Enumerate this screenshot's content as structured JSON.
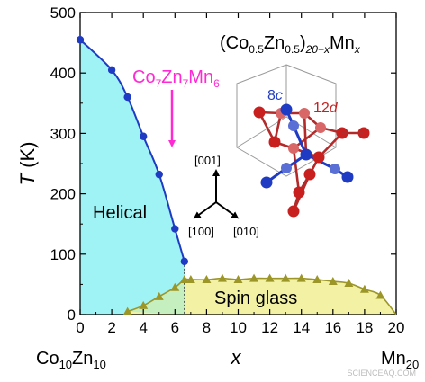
{
  "chart_data": {
    "type": "scatter",
    "xlabel": "x",
    "ylabel_main": "T",
    "ylabel_unit": " (K)",
    "xlim": [
      0,
      20
    ],
    "ylim": [
      0,
      500
    ],
    "x_ticks": [
      "0",
      "2",
      "4",
      "6",
      "8",
      "10",
      "12",
      "14",
      "16",
      "18",
      "20"
    ],
    "y_ticks": [
      "0",
      "100",
      "200",
      "300",
      "400",
      "500"
    ],
    "x_end_left": {
      "base": "Co",
      "sub1": "10",
      "mid": "Zn",
      "sub2": "10"
    },
    "x_end_right": {
      "base": "Mn",
      "sub": "20"
    },
    "formula": {
      "open": "(Co",
      "s1": "0.5",
      "mid": "Zn",
      "s2": "0.5",
      "close": ")",
      "s3": "20−x",
      "tail": "Mn",
      "s4": "x"
    },
    "marker_label": {
      "a": "Co",
      "s1": "7",
      "b": "Zn",
      "s2": "7",
      "c": "Mn",
      "s3": "6"
    },
    "phase_labels": {
      "helical": "Helical",
      "spin_glass": "Spin glass"
    },
    "inset_labels": {
      "site_8c_num": "8",
      "site_8c_letter": "c",
      "site_12d_num": "12",
      "site_12d_letter": "d"
    },
    "direction_labels": {
      "d001": "[001]",
      "d100": "[100]",
      "d010": "[010]"
    },
    "watermark": "SCIENCEAQ.COM",
    "colors": {
      "helical_fill": "#9ff3f5",
      "glass_fill": "#f2f1a4",
      "overlap_fill": "#c6efc0",
      "tc_series": "#1f3bc4",
      "glass_series": "#9c9628",
      "arrow": "#ff2ad4",
      "site_8c": "#1f3bc4",
      "site_12d": "#c8201f"
    },
    "series": [
      {
        "name": "",
        "marker": "circle",
        "points": [
          [
            0,
            455
          ],
          [
            2,
            405
          ],
          [
            3,
            360
          ],
          [
            4,
            295
          ],
          [
            5,
            232
          ],
          [
            6,
            142
          ],
          [
            6.6,
            88
          ]
        ]
      },
      {
        "name": "",
        "marker": "triangle",
        "points": [
          [
            3,
            5
          ],
          [
            4,
            15
          ],
          [
            5,
            30
          ],
          [
            6,
            45
          ],
          [
            6.6,
            58
          ],
          [
            7,
            58
          ],
          [
            8,
            58
          ],
          [
            9,
            60
          ],
          [
            10,
            58
          ],
          [
            11,
            60
          ],
          [
            12,
            60
          ],
          [
            13,
            60
          ],
          [
            14,
            60
          ],
          [
            15,
            58
          ],
          [
            16,
            55
          ],
          [
            17,
            52
          ],
          [
            18,
            42
          ],
          [
            19,
            32
          ]
        ]
      }
    ]
  }
}
